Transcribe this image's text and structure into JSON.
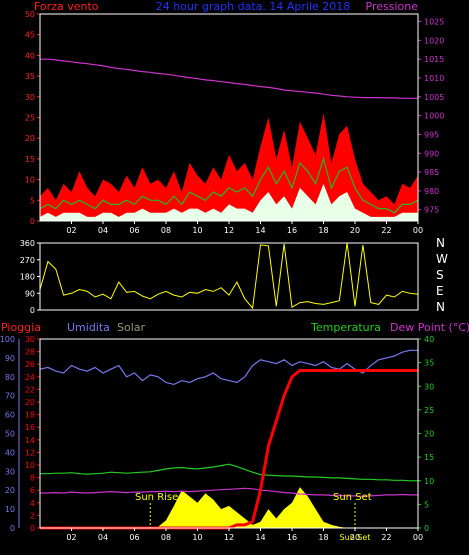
{
  "colors": {
    "background": "#000000",
    "axis": "#ffffff",
    "wind_axis": "#ff2020",
    "pressure": "#cc33cc",
    "gust": "#ff0000",
    "wind_avg": "#22bb22",
    "wind_min": "#e8ffe8",
    "direction": "#ffff00",
    "rain": "#ff0000",
    "humidity": "#7777ee",
    "solar": "#ffff00",
    "temperature": "#22cc22",
    "dewpoint": "#cc33cc",
    "sun_label": "#ffff00"
  },
  "header": {
    "left": "Forza vento",
    "center": "24 hour graph data. 14 Aprile 2018",
    "right": "Pressione"
  },
  "labels": {
    "compass": [
      "N",
      "W",
      "S",
      "E",
      "N"
    ],
    "rain": "Pioggia",
    "humidity": "Umidita",
    "solar": "Solar",
    "temperature": "Temperatura",
    "dewpoint": "Dew Point (°C)",
    "sunrise": "Sun Rise",
    "sunset": "Sun Set",
    "sunset_axis": "Sun Set"
  },
  "chart_data": [
    {
      "type": "line",
      "name": "wind",
      "x": [
        0,
        0.5,
        1,
        1.5,
        2,
        2.5,
        3,
        3.5,
        4,
        4.5,
        5,
        5.5,
        6,
        6.5,
        7,
        7.5,
        8,
        8.5,
        9,
        9.5,
        10,
        10.5,
        11,
        11.5,
        12,
        12.5,
        13,
        13.5,
        14,
        14.5,
        15,
        15.5,
        16,
        16.5,
        17,
        17.5,
        18,
        18.5,
        19,
        19.5,
        20,
        20.5,
        21,
        21.5,
        22,
        22.5,
        23,
        23.5,
        24
      ],
      "x_ticks": [
        "02",
        "04",
        "06",
        "08",
        "10",
        "12",
        "14",
        "16",
        "18",
        "20",
        "22",
        "00"
      ],
      "y_left_ticks": [
        0,
        5,
        10,
        15,
        20,
        25,
        30,
        35,
        40,
        45,
        50
      ],
      "y_right_ticks": [
        975,
        980,
        985,
        990,
        995,
        1000,
        1005,
        1010,
        1015,
        1020,
        1025
      ],
      "ylim_left": [
        0,
        50
      ],
      "ylim_right": [
        972,
        1027
      ],
      "pressure": [
        1015,
        1015,
        1014.8,
        1014.5,
        1014.3,
        1014,
        1013.8,
        1013.5,
        1013.2,
        1012.8,
        1012.5,
        1012.3,
        1012,
        1011.7,
        1011.5,
        1011.2,
        1011,
        1010.7,
        1010.4,
        1010.1,
        1009.8,
        1009.5,
        1009.3,
        1009,
        1008.8,
        1008.5,
        1008.3,
        1008,
        1007.7,
        1007.5,
        1007.2,
        1006.8,
        1006.6,
        1006.4,
        1006.2,
        1006,
        1005.7,
        1005.4,
        1005.2,
        1005,
        1004.9,
        1004.8,
        1004.8,
        1004.8,
        1004.7,
        1004.7,
        1004.6,
        1004.6,
        1004.6
      ],
      "gust": [
        6,
        8,
        5,
        9,
        7,
        12,
        8,
        6,
        10,
        9,
        7,
        11,
        8,
        13,
        9,
        10,
        8,
        12,
        7,
        14,
        11,
        9,
        13,
        10,
        16,
        12,
        14,
        10,
        18,
        25,
        15,
        22,
        13,
        24,
        20,
        16,
        26,
        14,
        21,
        23,
        15,
        9,
        7,
        5,
        6,
        4,
        9,
        8,
        11
      ],
      "average": [
        3,
        4,
        3,
        5,
        4,
        5,
        4,
        3,
        5,
        4,
        4,
        5,
        4,
        6,
        5,
        5,
        4,
        6,
        4,
        7,
        6,
        5,
        7,
        6,
        8,
        7,
        8,
        6,
        10,
        13,
        9,
        12,
        8,
        14,
        12,
        9,
        15,
        8,
        12,
        13,
        8,
        5,
        4,
        3,
        3,
        2,
        4,
        4,
        5
      ],
      "minimum": [
        1,
        2,
        1,
        2,
        2,
        2,
        1,
        1,
        2,
        2,
        1,
        2,
        2,
        3,
        2,
        2,
        2,
        3,
        2,
        3,
        3,
        2,
        3,
        2,
        4,
        3,
        3,
        2,
        5,
        7,
        4,
        6,
        3,
        8,
        6,
        4,
        9,
        4,
        6,
        7,
        3,
        2,
        1,
        1,
        1,
        1,
        2,
        2,
        2
      ]
    },
    {
      "type": "line",
      "name": "wind-direction",
      "x": [
        0,
        0.5,
        1,
        1.5,
        2,
        2.5,
        3,
        3.5,
        4,
        4.5,
        5,
        5.5,
        6,
        6.5,
        7,
        7.5,
        8,
        8.5,
        9,
        9.5,
        10,
        10.5,
        11,
        11.5,
        12,
        12.5,
        13,
        13.5,
        14,
        14.5,
        15,
        15.5,
        16,
        16.5,
        17,
        17.5,
        18,
        18.5,
        19,
        19.5,
        20,
        20.5,
        21,
        21.5,
        22,
        22.5,
        23,
        23.5,
        24
      ],
      "y_left_ticks": [
        0,
        90,
        180,
        270,
        360
      ],
      "ylim": [
        0,
        360
      ],
      "values": [
        110,
        260,
        220,
        80,
        90,
        110,
        100,
        70,
        85,
        60,
        150,
        95,
        100,
        75,
        60,
        85,
        100,
        80,
        70,
        95,
        90,
        110,
        100,
        120,
        80,
        150,
        60,
        10,
        350,
        345,
        20,
        355,
        15,
        40,
        45,
        35,
        30,
        40,
        50,
        360,
        20,
        350,
        40,
        30,
        80,
        70,
        100,
        90,
        85
      ]
    },
    {
      "type": "line",
      "name": "climate",
      "x": [
        0,
        0.5,
        1,
        1.5,
        2,
        2.5,
        3,
        3.5,
        4,
        4.5,
        5,
        5.5,
        6,
        6.5,
        7,
        7.5,
        8,
        8.5,
        9,
        9.5,
        10,
        10.5,
        11,
        11.5,
        12,
        12.5,
        13,
        13.5,
        14,
        14.5,
        15,
        15.5,
        16,
        16.5,
        17,
        17.5,
        18,
        18.5,
        19,
        19.5,
        20,
        20.5,
        21,
        21.5,
        22,
        22.5,
        23,
        23.5,
        24
      ],
      "y_left_outer_ticks": [
        0,
        10,
        20,
        30,
        40,
        50,
        60,
        70,
        80,
        90,
        100
      ],
      "y_left_inner_ticks": [
        0,
        2,
        4,
        6,
        8,
        10,
        12,
        14,
        16,
        18,
        20,
        22,
        24,
        26,
        28,
        30
      ],
      "y_right_ticks": [
        0,
        5,
        10,
        15,
        20,
        25,
        30,
        35,
        40
      ],
      "ylim_humidity": [
        0,
        100
      ],
      "ylim_rain": [
        0,
        30
      ],
      "ylim_temperature": [
        0,
        40
      ],
      "humidity": [
        84,
        85,
        83,
        82,
        86,
        84,
        83,
        85,
        82,
        84,
        86,
        80,
        82,
        78,
        81,
        80,
        77,
        76,
        78,
        77,
        79,
        80,
        82,
        79,
        78,
        77,
        80,
        86,
        89,
        88,
        87,
        89,
        86,
        88,
        87,
        86,
        88,
        85,
        84,
        87,
        84,
        82,
        86,
        89,
        90,
        91,
        93,
        94,
        94
      ],
      "solar": [
        0,
        0,
        0,
        0,
        0,
        0,
        0,
        0,
        0,
        0,
        0,
        0,
        0,
        0,
        0,
        0.2,
        1.2,
        3.5,
        6,
        5,
        4,
        5.5,
        4.5,
        3,
        3.5,
        2.5,
        1.5,
        0.5,
        1,
        3,
        1.5,
        3,
        4,
        6.5,
        5,
        3,
        1,
        0.5,
        0.2,
        0,
        0,
        0,
        0,
        0,
        0,
        0,
        0,
        0,
        0
      ],
      "rain": [
        0,
        0,
        0,
        0,
        0,
        0,
        0,
        0,
        0,
        0,
        0,
        0,
        0,
        0,
        0,
        0,
        0,
        0,
        0,
        0,
        0,
        0,
        0,
        0,
        0,
        0.5,
        0.5,
        1,
        6,
        13,
        17,
        21,
        24,
        25,
        25,
        25,
        25,
        25,
        25,
        25,
        25,
        25,
        25,
        25,
        25,
        25,
        25,
        25,
        25
      ],
      "temperature": [
        11.5,
        11.5,
        11.6,
        11.6,
        11.7,
        11.5,
        11.4,
        11.5,
        11.6,
        11.8,
        11.7,
        11.6,
        11.7,
        11.8,
        11.9,
        12.2,
        12.5,
        12.7,
        12.8,
        12.6,
        12.5,
        12.7,
        12.9,
        13.2,
        13.5,
        13,
        12.4,
        11.8,
        11.3,
        11.2,
        11.1,
        11,
        11,
        10.9,
        10.8,
        10.8,
        10.7,
        10.6,
        10.6,
        10.5,
        10.4,
        10.3,
        10.3,
        10.2,
        10.2,
        10.1,
        10.1,
        10,
        10
      ],
      "dewpoint": [
        7.4,
        7.4,
        7.5,
        7.4,
        7.6,
        7.5,
        7.4,
        7.5,
        7.6,
        7.7,
        7.6,
        7.5,
        7.6,
        7.6,
        7.7,
        7.7,
        7.8,
        7.7,
        7.8,
        7.7,
        7.8,
        7.9,
        8,
        8.1,
        8.2,
        8.3,
        8.4,
        8.3,
        8,
        7.9,
        7.7,
        7.5,
        7.4,
        7.2,
        7.1,
        7,
        7,
        6.9,
        6.9,
        6.8,
        6.8,
        6.7,
        6.8,
        6.9,
        7,
        7,
        7.1,
        7,
        7
      ],
      "sunrise_hour": 7,
      "sunset_hour": 20
    }
  ]
}
